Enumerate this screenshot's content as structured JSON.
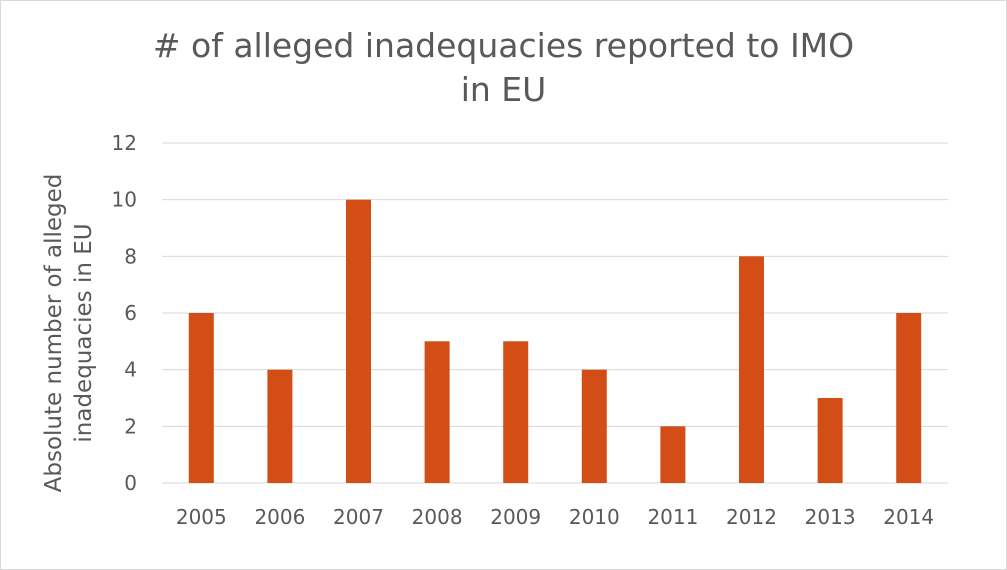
{
  "chart_data": {
    "type": "bar",
    "title_lines": [
      "# of alleged inadequacies reported to IMO",
      "in EU"
    ],
    "categories": [
      "2005",
      "2006",
      "2007",
      "2008",
      "2009",
      "2010",
      "2011",
      "2012",
      "2013",
      "2014"
    ],
    "values": [
      6,
      4,
      10,
      5,
      5,
      4,
      2,
      8,
      3,
      6
    ],
    "xlabel": "",
    "ylabel_lines": [
      "Absolute number of alleged",
      "inadequacies in EU"
    ],
    "ylim": [
      0,
      12
    ],
    "yticks": [
      "0",
      "2",
      "4",
      "6",
      "8",
      "10",
      "12"
    ],
    "grid": true,
    "legend": "none",
    "bar_color": "#D24E16",
    "grid_color": "#D9D9D9"
  }
}
